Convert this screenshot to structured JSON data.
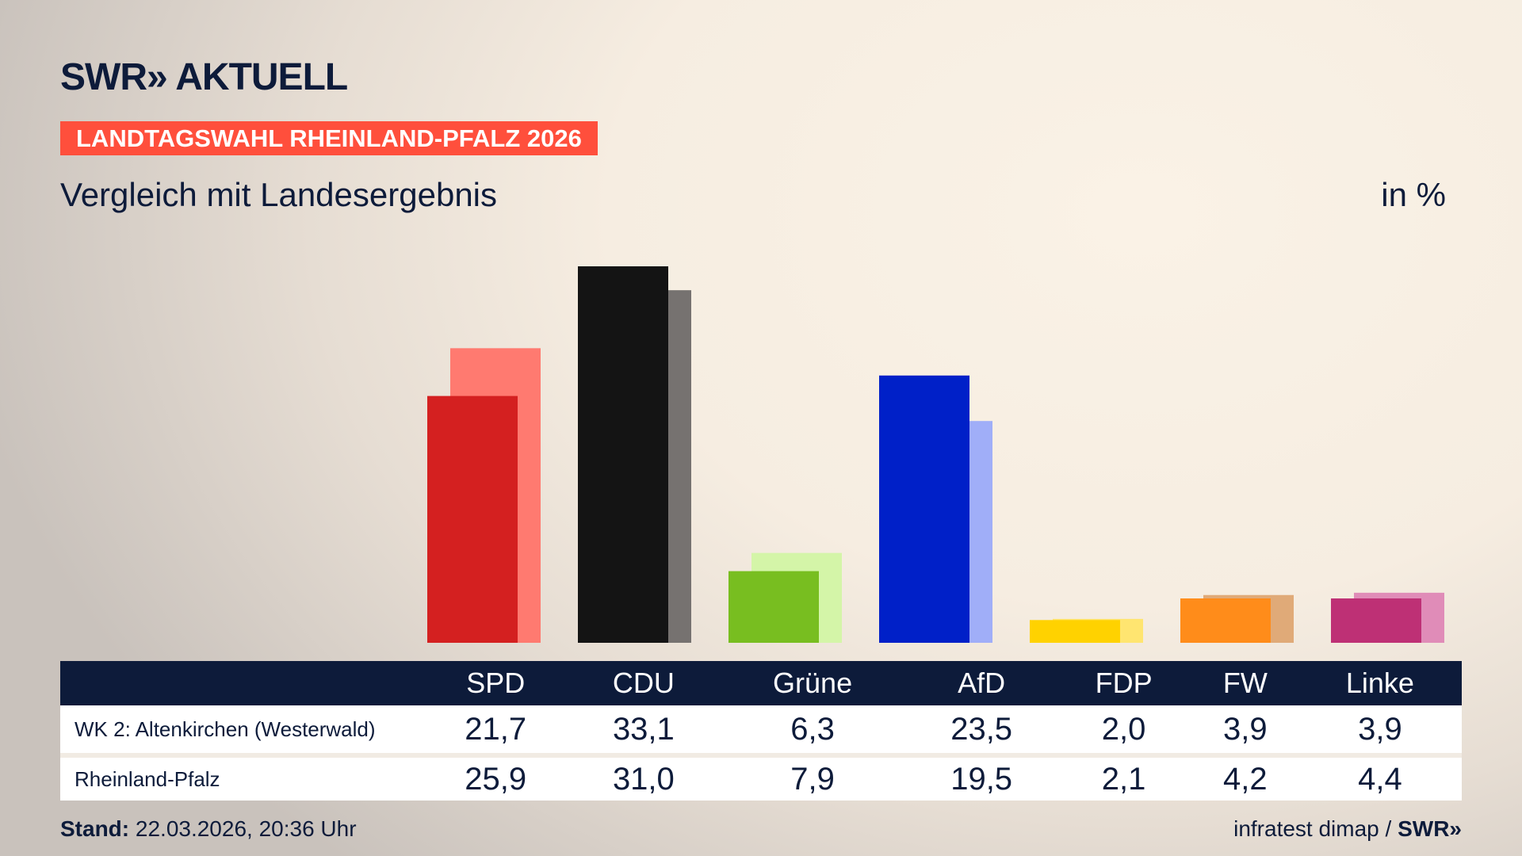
{
  "header": {
    "logo": "SWR» AKTUELL",
    "banner": "LANDTAGSWAHL RHEINLAND-PFALZ 2026",
    "subtitle": "Vergleich mit Landesergebnis",
    "unit": "in %"
  },
  "chart_data": {
    "type": "bar",
    "categories": [
      "SPD",
      "CDU",
      "Grüne",
      "AfD",
      "FDP",
      "FW",
      "Linke"
    ],
    "series": [
      {
        "name": "WK 2: Altenkirchen (Westerwald)",
        "values": [
          21.7,
          33.1,
          6.3,
          23.5,
          2.0,
          3.9,
          3.9
        ],
        "colors": [
          "#d42020",
          "#141414",
          "#78be20",
          "#0020c8",
          "#ffd200",
          "#ff8c1a",
          "#be3075"
        ]
      },
      {
        "name": "Rheinland-Pfalz",
        "values": [
          25.9,
          31.0,
          7.9,
          19.5,
          2.1,
          4.2,
          4.4
        ],
        "colors": [
          "#ff7a70",
          "#767270",
          "#d4f5a8",
          "#a0aef8",
          "#ffe570",
          "#e0aa78",
          "#e08cb8"
        ]
      }
    ],
    "display": {
      "WK": [
        "21,7",
        "33,1",
        "6,3",
        "23,5",
        "2,0",
        "3,9",
        "3,9"
      ],
      "RLP": [
        "25,9",
        "31,0",
        "7,9",
        "19,5",
        "2,1",
        "4,2",
        "4,4"
      ]
    }
  },
  "footer": {
    "stand_label": "Stand:",
    "stand_value": " 22.03.2026, 20:36 Uhr",
    "source": "infratest dimap / ",
    "source_logo": "SWR»"
  },
  "colors": {
    "navy": "#0d1b3a",
    "banner": "#ff4f3c"
  }
}
